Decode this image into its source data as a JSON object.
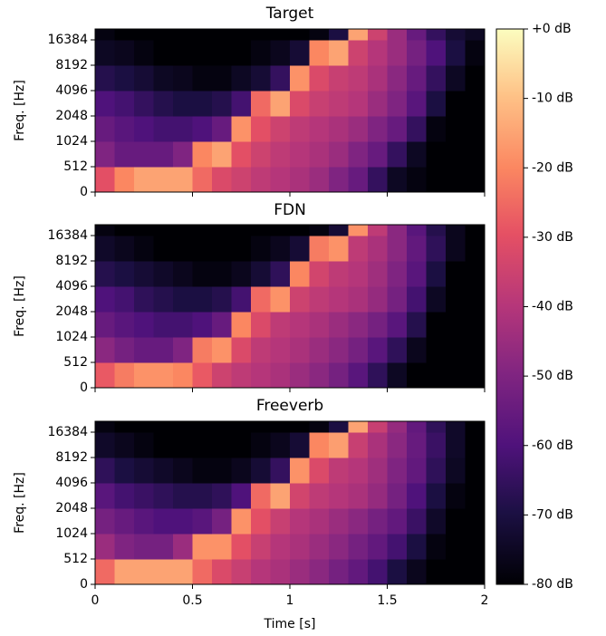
{
  "chart_data": [
    {
      "type": "heatmap",
      "title": "Target",
      "ylabel": "Freq. [Hz]",
      "yscale": "log2",
      "xbins": [
        0,
        0.1,
        0.2,
        0.3,
        0.4,
        0.5,
        0.6,
        0.7,
        0.8,
        0.9,
        1,
        1.1,
        1.2,
        1.3,
        1.4,
        1.5,
        1.6,
        1.7,
        1.8,
        1.9,
        2
      ],
      "ybins": [
        0,
        512,
        1024,
        2048,
        4096,
        8192,
        16384,
        22050
      ],
      "values": [
        [
          -30,
          -20,
          -15,
          -15,
          -15,
          -25,
          -32,
          -35,
          -38,
          -40,
          -42,
          -45,
          -50,
          -55,
          -65,
          -75,
          -78,
          -80,
          -80,
          -80
        ],
        [
          -50,
          -55,
          -55,
          -55,
          -50,
          -20,
          -15,
          -30,
          -35,
          -38,
          -40,
          -42,
          -45,
          -50,
          -55,
          -65,
          -75,
          -80,
          -80,
          -80
        ],
        [
          -55,
          -58,
          -60,
          -62,
          -62,
          -60,
          -55,
          -18,
          -30,
          -35,
          -38,
          -40,
          -42,
          -45,
          -50,
          -55,
          -65,
          -78,
          -80,
          -80
        ],
        [
          -60,
          -62,
          -65,
          -68,
          -70,
          -70,
          -68,
          -62,
          -25,
          -15,
          -32,
          -36,
          -38,
          -40,
          -45,
          -50,
          -58,
          -70,
          -80,
          -80
        ],
        [
          -68,
          -70,
          -72,
          -75,
          -76,
          -78,
          -78,
          -75,
          -72,
          -65,
          -18,
          -32,
          -36,
          -38,
          -42,
          -48,
          -55,
          -65,
          -75,
          -80
        ],
        [
          -75,
          -76,
          -78,
          -80,
          -80,
          -80,
          -80,
          -80,
          -78,
          -76,
          -72,
          -20,
          -15,
          -35,
          -40,
          -45,
          -52,
          -60,
          -70,
          -78
        ],
        [
          -78,
          -80,
          -80,
          -80,
          -80,
          -80,
          -80,
          -80,
          -80,
          -80,
          -80,
          -78,
          -70,
          -15,
          -35,
          -45,
          -55,
          -65,
          -72,
          -75
        ]
      ],
      "xlim": [
        0,
        2
      ],
      "xticks": [
        0,
        0.5,
        1,
        1.5,
        2
      ],
      "ylim": [
        0,
        22050
      ],
      "yticks": [
        0,
        512,
        1024,
        2048,
        4096,
        8192,
        16384
      ]
    },
    {
      "type": "heatmap",
      "title": "FDN",
      "ylabel": "Freq. [Hz]",
      "yscale": "log2",
      "xbins": [
        0,
        0.1,
        0.2,
        0.3,
        0.4,
        0.5,
        0.6,
        0.7,
        0.8,
        0.9,
        1,
        1.1,
        1.2,
        1.3,
        1.4,
        1.5,
        1.6,
        1.7,
        1.8,
        1.9,
        2
      ],
      "ybins": [
        0,
        512,
        1024,
        2048,
        4096,
        8192,
        16384,
        22050
      ],
      "values": [
        [
          -28,
          -22,
          -18,
          -18,
          -20,
          -28,
          -35,
          -38,
          -40,
          -42,
          -45,
          -48,
          -52,
          -58,
          -66,
          -75,
          -80,
          -80,
          -80,
          -80
        ],
        [
          -48,
          -52,
          -55,
          -55,
          -50,
          -22,
          -18,
          -32,
          -38,
          -40,
          -42,
          -45,
          -48,
          -52,
          -58,
          -66,
          -76,
          -80,
          -80,
          -80
        ],
        [
          -55,
          -58,
          -60,
          -62,
          -62,
          -60,
          -55,
          -20,
          -32,
          -38,
          -40,
          -42,
          -45,
          -48,
          -52,
          -58,
          -68,
          -80,
          -80,
          -80
        ],
        [
          -60,
          -62,
          -66,
          -68,
          -70,
          -70,
          -68,
          -62,
          -25,
          -18,
          -35,
          -38,
          -40,
          -42,
          -46,
          -52,
          -62,
          -75,
          -80,
          -80
        ],
        [
          -68,
          -70,
          -72,
          -74,
          -76,
          -78,
          -78,
          -76,
          -72,
          -66,
          -20,
          -34,
          -38,
          -40,
          -44,
          -50,
          -58,
          -70,
          -80,
          -80
        ],
        [
          -74,
          -76,
          -78,
          -80,
          -80,
          -80,
          -80,
          -80,
          -78,
          -76,
          -72,
          -22,
          -18,
          -38,
          -42,
          -48,
          -56,
          -66,
          -76,
          -80
        ],
        [
          -78,
          -80,
          -80,
          -80,
          -80,
          -80,
          -80,
          -80,
          -80,
          -80,
          -80,
          -78,
          -72,
          -18,
          -38,
          -48,
          -58,
          -68,
          -76,
          -80
        ]
      ],
      "xlim": [
        0,
        2
      ],
      "xticks": [
        0,
        0.5,
        1,
        1.5,
        2
      ],
      "ylim": [
        0,
        22050
      ],
      "yticks": [
        0,
        512,
        1024,
        2048,
        4096,
        8192,
        16384
      ]
    },
    {
      "type": "heatmap",
      "title": "Freeverb",
      "ylabel": "Freq. [Hz]",
      "xlabel": "Time [s]",
      "yscale": "log2",
      "xbins": [
        0,
        0.1,
        0.2,
        0.3,
        0.4,
        0.5,
        0.6,
        0.7,
        0.8,
        0.9,
        1,
        1.1,
        1.2,
        1.3,
        1.4,
        1.5,
        1.6,
        1.7,
        1.8,
        1.9,
        2
      ],
      "ybins": [
        0,
        512,
        1024,
        2048,
        4096,
        8192,
        16384,
        22050
      ],
      "values": [
        [
          -25,
          -15,
          -15,
          -15,
          -15,
          -25,
          -32,
          -36,
          -40,
          -42,
          -45,
          -48,
          -52,
          -56,
          -62,
          -70,
          -76,
          -80,
          -80,
          -80
        ],
        [
          -45,
          -50,
          -52,
          -52,
          -45,
          -18,
          -18,
          -30,
          -36,
          -40,
          -42,
          -45,
          -48,
          -52,
          -56,
          -62,
          -70,
          -78,
          -80,
          -80
        ],
        [
          -52,
          -55,
          -58,
          -60,
          -60,
          -58,
          -52,
          -18,
          -30,
          -36,
          -40,
          -42,
          -45,
          -48,
          -52,
          -56,
          -64,
          -74,
          -80,
          -80
        ],
        [
          -58,
          -62,
          -64,
          -66,
          -68,
          -68,
          -66,
          -60,
          -25,
          -15,
          -34,
          -38,
          -40,
          -42,
          -46,
          -52,
          -60,
          -70,
          -78,
          -80
        ],
        [
          -66,
          -70,
          -72,
          -74,
          -76,
          -78,
          -78,
          -76,
          -72,
          -65,
          -18,
          -32,
          -38,
          -40,
          -44,
          -50,
          -56,
          -66,
          -75,
          -80
        ],
        [
          -74,
          -76,
          -78,
          -80,
          -80,
          -80,
          -80,
          -80,
          -78,
          -76,
          -72,
          -20,
          -16,
          -36,
          -42,
          -48,
          -55,
          -64,
          -74,
          -80
        ],
        [
          -78,
          -80,
          -80,
          -80,
          -80,
          -80,
          -80,
          -80,
          -80,
          -80,
          -80,
          -78,
          -70,
          -15,
          -36,
          -46,
          -56,
          -66,
          -74,
          -80
        ]
      ],
      "xlim": [
        0,
        2
      ],
      "xticks": [
        0,
        0.5,
        1,
        1.5,
        2
      ],
      "ylim": [
        0,
        22050
      ],
      "yticks": [
        0,
        512,
        1024,
        2048,
        4096,
        8192,
        16384
      ]
    }
  ],
  "colorbar": {
    "colormap": "magma",
    "zlim": [
      -80,
      0
    ],
    "ticks": [
      {
        "value": 0,
        "label": "+0 dB"
      },
      {
        "value": -10,
        "label": "-10 dB"
      },
      {
        "value": -20,
        "label": "-20 dB"
      },
      {
        "value": -30,
        "label": "-30 dB"
      },
      {
        "value": -40,
        "label": "-40 dB"
      },
      {
        "value": -50,
        "label": "-50 dB"
      },
      {
        "value": -60,
        "label": "-60 dB"
      },
      {
        "value": -70,
        "label": "-70 dB"
      },
      {
        "value": -80,
        "label": "-80 dB"
      }
    ]
  }
}
